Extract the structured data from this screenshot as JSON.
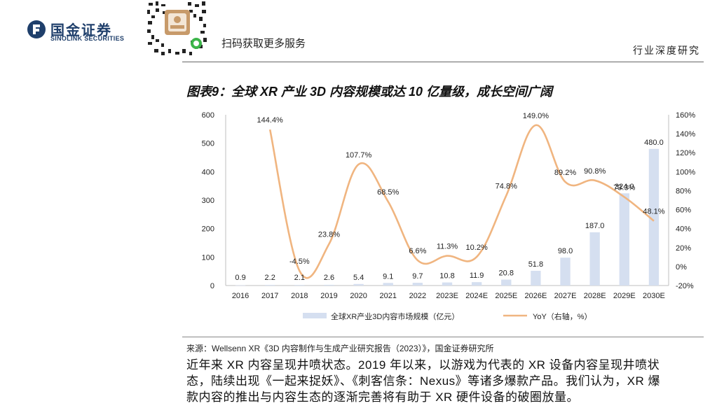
{
  "header": {
    "company_cn": "国金证券",
    "company_en": "SINOLINK SECURITIES",
    "scan_text": "扫码获取更多服务",
    "doc_type": "行业深度研究"
  },
  "chart_title": "图表9：全球 XR 产业 3D 内容规模或达 10 亿量级，成长空间广阔",
  "chart_data": {
    "type": "bar",
    "categories": [
      "2016",
      "2017",
      "2018",
      "2019",
      "2020",
      "2021",
      "2022",
      "2023E",
      "2024E",
      "2025E",
      "2026E",
      "2027E",
      "2028E",
      "2029E",
      "2030E"
    ],
    "series": [
      {
        "name": "全球XR产业3D内容市场规模（亿元）",
        "type": "bar",
        "axis": "left",
        "color": "#d5dff0",
        "values": [
          0.9,
          2.2,
          2.1,
          2.6,
          5.4,
          9.1,
          9.7,
          10.8,
          11.9,
          20.8,
          51.8,
          98.0,
          187.0,
          324.0,
          480.0
        ],
        "labels": [
          "0.9",
          "2.2",
          "2.1",
          "2.6",
          "5.4",
          "9.1",
          "9.7",
          "10.8",
          "11.9",
          "20.8",
          "51.8",
          "98.0",
          "187.0",
          "324.0",
          "480.0"
        ]
      },
      {
        "name": "YoY（右轴，%）",
        "type": "line",
        "axis": "right",
        "color": "#f0b580",
        "values": [
          null,
          144.4,
          -4.5,
          23.8,
          107.7,
          68.5,
          6.6,
          11.3,
          10.2,
          74.8,
          149.0,
          89.2,
          90.8,
          73.3,
          48.1
        ],
        "labels": [
          "",
          "144.4%",
          "-4.5%",
          "23.8%",
          "107.7%",
          "68.5%",
          "6.6%",
          "11.3%",
          "10.2%",
          "74.8%",
          "149.0%",
          "89.2%",
          "90.8%",
          "73.3%",
          "48.1%"
        ]
      }
    ],
    "y_left": {
      "min": 0,
      "max": 600,
      "ticks": [
        "0",
        "100",
        "200",
        "300",
        "400",
        "500",
        "600"
      ]
    },
    "y_right": {
      "min": -20,
      "max": 160,
      "ticks": [
        "-20%",
        "0%",
        "20%",
        "40%",
        "60%",
        "80%",
        "100%",
        "120%",
        "140%",
        "160%"
      ]
    },
    "grid": false,
    "legend_position": "bottom"
  },
  "source": "来源：Wellsenn XR《3D 内容制作与生成产业研究报告（2023）》，国金证券研究所",
  "body_lines": [
    "近年来 XR 内容呈现井喷状态。2019 年以来，以游戏为代表的 XR 设备内容呈现井喷状",
    "态，陆续出现《一起来捉妖》、《刺客信条：Nexus》等诸多爆款产品。我们认为，XR 爆",
    "款内容的推出与内容生态的逐渐完善将有助于 XR 硬件设备的破圈放量。"
  ]
}
